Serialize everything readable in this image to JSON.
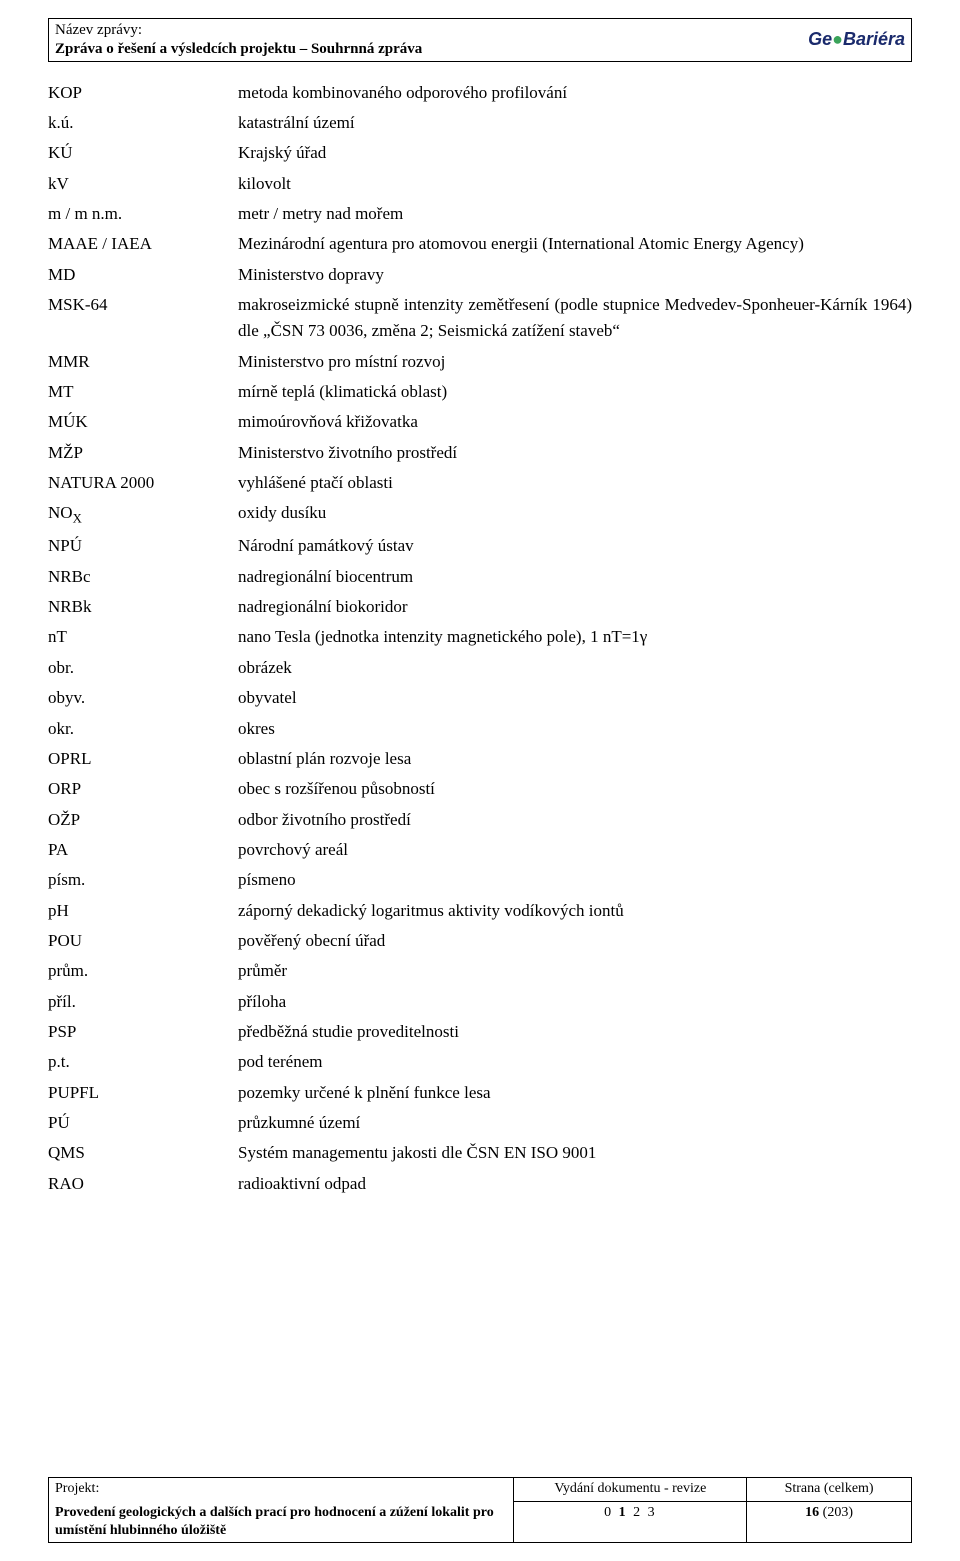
{
  "header": {
    "label": "Název zprávy:",
    "title": "Zpráva o řešení a výsledcích projektu – Souhrnná zpráva",
    "brand_ge": "Ge",
    "brand_globe": "●",
    "brand_bariera": "Bariéra"
  },
  "defs": [
    {
      "term": "KOP",
      "def": "metoda kombinovaného odporového profilování"
    },
    {
      "term": "k.ú.",
      "def": "katastrální území"
    },
    {
      "term": "KÚ",
      "def": "Krajský úřad"
    },
    {
      "term": "kV",
      "def": "kilovolt"
    },
    {
      "term": "m / m n.m.",
      "def": "metr / metry nad mořem"
    },
    {
      "term": "MAAE / IAEA",
      "def": "Mezinárodní agentura pro atomovou energii (International Atomic Energy Agency)"
    },
    {
      "term": "MD",
      "def": "Ministerstvo dopravy"
    },
    {
      "term": "MSK-64",
      "def": "makroseizmické stupně intenzity zemětřesení (podle stupnice Medvedev-Sponheuer-Kárník 1964) dle „ČSN 73 0036, změna 2; Seismická zatížení staveb“"
    },
    {
      "term": "MMR",
      "def": "Ministerstvo pro místní rozvoj"
    },
    {
      "term": "MT",
      "def": "mírně teplá (klimatická oblast)"
    },
    {
      "term": "MÚK",
      "def": "mimoúrovňová křižovatka"
    },
    {
      "term": "MŽP",
      "def": "Ministerstvo životního prostředí"
    },
    {
      "term": "NATURA 2000",
      "def": "vyhlášené ptačí oblasti"
    },
    {
      "term": "NOX",
      "term_sub": "X",
      "term_pre": "NO",
      "def": "oxidy dusíku"
    },
    {
      "term": "NPÚ",
      "def": "Národní památkový ústav"
    },
    {
      "term": "NRBc",
      "def": "nadregionální biocentrum"
    },
    {
      "term": "NRBk",
      "def": "nadregionální biokoridor"
    },
    {
      "term": "nT",
      "def": "nano Tesla (jednotka intenzity magnetického pole), 1 nT=1γ"
    },
    {
      "term": "obr.",
      "def": "obrázek"
    },
    {
      "term": "obyv.",
      "def": "obyvatel"
    },
    {
      "term": "okr.",
      "def": "okres"
    },
    {
      "term": "OPRL",
      "def": "oblastní plán rozvoje lesa"
    },
    {
      "term": "ORP",
      "def": "obec s rozšířenou působností"
    },
    {
      "term": "OŽP",
      "def": "odbor životního prostředí"
    },
    {
      "term": "PA",
      "def": "povrchový areál"
    },
    {
      "term": "písm.",
      "def": "písmeno"
    },
    {
      "term": "pH",
      "def": "záporný dekadický logaritmus aktivity vodíkových iontů"
    },
    {
      "term": "POU",
      "def": "pověřený obecní úřad"
    },
    {
      "term": "prům.",
      "def": "průměr"
    },
    {
      "term": "příl.",
      "def": "příloha"
    },
    {
      "term": "PSP",
      "def": "předběžná studie proveditelnosti"
    },
    {
      "term": "p.t.",
      "def": "pod terénem"
    },
    {
      "term": "PUPFL",
      "def": "pozemky určené k plnění funkce lesa"
    },
    {
      "term": "PÚ",
      "def": "průzkumné území"
    },
    {
      "term": "QMS",
      "def": "Systém managementu jakosti dle ČSN EN ISO 9001"
    },
    {
      "term": "RAO",
      "def": "radioaktivní odpad"
    }
  ],
  "footer": {
    "project_label": "Projekt:",
    "revision_label": "Vydání dokumentu - revize",
    "page_label": "Strana (celkem)",
    "project_title": "Provedení geologických a dalších prací pro hodnocení a zúžení lokalit pro umístění hlubinného úložiště",
    "revisions": "0 1 2 3",
    "revision_bold_index": 1,
    "page_current": "16",
    "page_total": "(203)"
  },
  "colors": {
    "text": "#000000",
    "background": "#ffffff",
    "brand_dark": "#1a2a6c",
    "brand_green": "#3aa35a"
  }
}
